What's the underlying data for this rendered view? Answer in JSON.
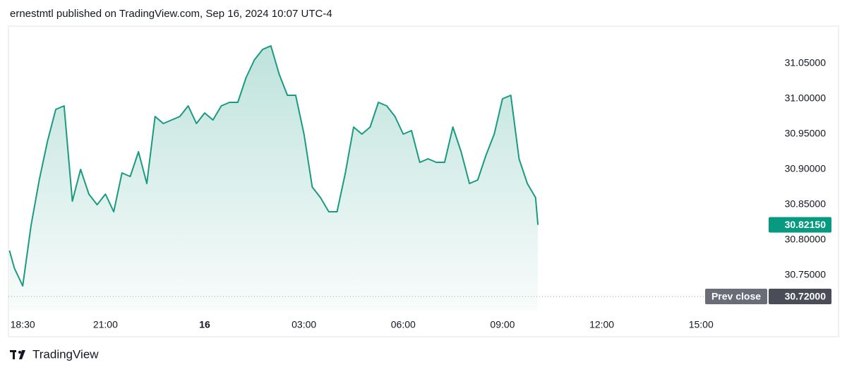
{
  "header": {
    "text": "ernestmtl published on TradingView.com, Sep 16, 2024 10:07 UTC-4"
  },
  "footer": {
    "brand": "TradingView"
  },
  "chart_data": {
    "type": "area",
    "color": "#1a9a82",
    "x": [
      18.1,
      18.25,
      18.5,
      18.75,
      19,
      19.25,
      19.5,
      19.75,
      20,
      20.25,
      20.5,
      20.75,
      21,
      21.25,
      21.5,
      21.75,
      22,
      22.25,
      22.5,
      22.75,
      23,
      23.25,
      23.5,
      23.75,
      24,
      24.25,
      24.5,
      24.75,
      25,
      25.25,
      25.5,
      25.75,
      26,
      26.25,
      26.5,
      26.75,
      27,
      27.25,
      27.5,
      27.75,
      28,
      28.25,
      28.5,
      28.75,
      29,
      29.25,
      29.5,
      29.75,
      30,
      30.25,
      30.5,
      30.75,
      31,
      31.25,
      31.5,
      31.75,
      32,
      32.25,
      32.5,
      32.75,
      33,
      33.25,
      33.5,
      33.75,
      34,
      34.07
    ],
    "values": [
      30.785,
      30.76,
      30.735,
      30.82,
      30.885,
      30.94,
      30.985,
      30.99,
      30.855,
      30.9,
      30.865,
      30.85,
      30.865,
      30.84,
      30.895,
      30.89,
      30.925,
      30.88,
      30.975,
      30.965,
      30.97,
      30.975,
      30.99,
      30.965,
      30.98,
      30.97,
      30.99,
      30.995,
      30.995,
      31.03,
      31.055,
      31.07,
      31.075,
      31.035,
      31.005,
      31.005,
      30.95,
      30.875,
      30.86,
      30.84,
      30.84,
      30.895,
      30.96,
      30.95,
      30.96,
      30.995,
      30.99,
      30.975,
      30.95,
      30.955,
      30.91,
      30.915,
      30.91,
      30.91,
      30.96,
      30.925,
      30.88,
      30.885,
      30.92,
      30.95,
      31.0,
      31.005,
      30.915,
      30.88,
      30.86,
      30.8215
    ],
    "xlim": [
      18.07,
      41
    ],
    "xticks": [
      {
        "value": 18.5,
        "label": "18:30"
      },
      {
        "value": 21,
        "label": "21:00"
      },
      {
        "value": 24,
        "label": "16"
      },
      {
        "value": 27,
        "label": "03:00"
      },
      {
        "value": 30,
        "label": "06:00"
      },
      {
        "value": 33,
        "label": "09:00"
      },
      {
        "value": 36,
        "label": "12:00"
      },
      {
        "value": 39,
        "label": "15:00"
      }
    ],
    "ylim": [
      30.7,
      31.1
    ],
    "yticks": [
      {
        "value": 30.75,
        "label": "30.75000"
      },
      {
        "value": 30.8,
        "label": "30.80000"
      },
      {
        "value": 30.85,
        "label": "30.85000"
      },
      {
        "value": 30.9,
        "label": "30.90000"
      },
      {
        "value": 30.95,
        "label": "30.95000"
      },
      {
        "value": 31.0,
        "label": "31.00000"
      },
      {
        "value": 31.05,
        "label": "31.05000"
      }
    ],
    "last_price": {
      "value": 30.8215,
      "label": "30.82150"
    },
    "prev_close": {
      "name": "Prev close",
      "value": 30.72,
      "label": "30.72000"
    }
  }
}
